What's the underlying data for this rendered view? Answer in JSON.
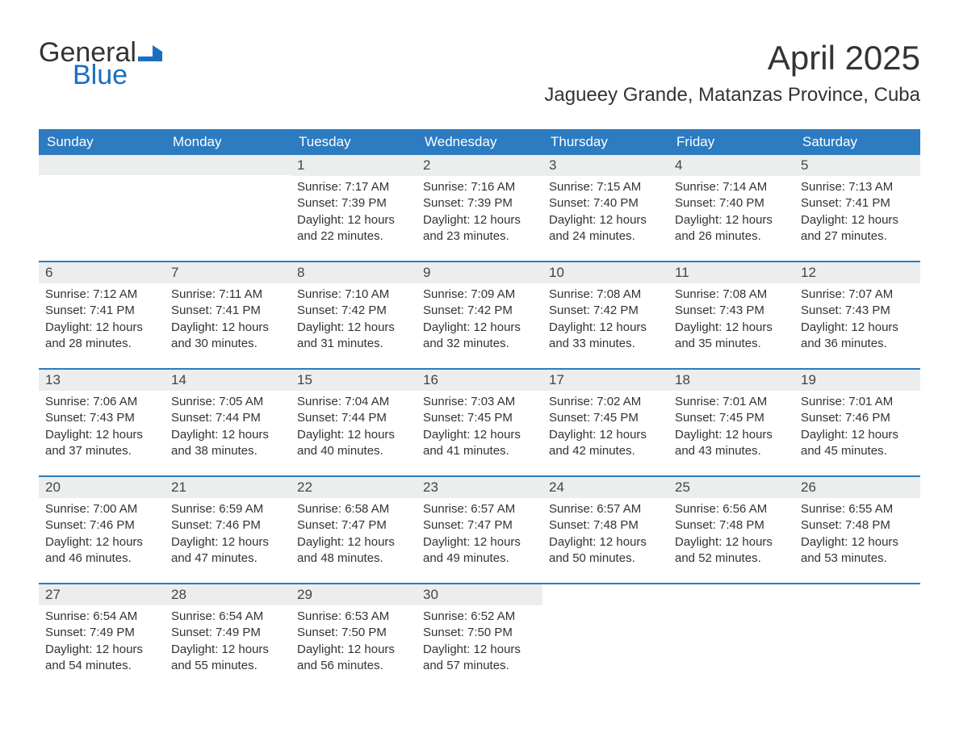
{
  "logo": {
    "general": "General",
    "blue": "Blue",
    "flag_color": "#1a6fbf"
  },
  "title": "April 2025",
  "location": "Jagueey Grande, Matanzas Province, Cuba",
  "colors": {
    "header_bg": "#2d7bc0",
    "header_text": "#ffffff",
    "daynum_bg": "#eceeee",
    "week_border": "#2d7bc0",
    "text": "#333333"
  },
  "weekdays": [
    "Sunday",
    "Monday",
    "Tuesday",
    "Wednesday",
    "Thursday",
    "Friday",
    "Saturday"
  ],
  "weeks": [
    [
      {
        "num": "",
        "sunrise": "",
        "sunset": "",
        "daylight": ""
      },
      {
        "num": "",
        "sunrise": "",
        "sunset": "",
        "daylight": ""
      },
      {
        "num": "1",
        "sunrise": "Sunrise: 7:17 AM",
        "sunset": "Sunset: 7:39 PM",
        "daylight": "Daylight: 12 hours and 22 minutes."
      },
      {
        "num": "2",
        "sunrise": "Sunrise: 7:16 AM",
        "sunset": "Sunset: 7:39 PM",
        "daylight": "Daylight: 12 hours and 23 minutes."
      },
      {
        "num": "3",
        "sunrise": "Sunrise: 7:15 AM",
        "sunset": "Sunset: 7:40 PM",
        "daylight": "Daylight: 12 hours and 24 minutes."
      },
      {
        "num": "4",
        "sunrise": "Sunrise: 7:14 AM",
        "sunset": "Sunset: 7:40 PM",
        "daylight": "Daylight: 12 hours and 26 minutes."
      },
      {
        "num": "5",
        "sunrise": "Sunrise: 7:13 AM",
        "sunset": "Sunset: 7:41 PM",
        "daylight": "Daylight: 12 hours and 27 minutes."
      }
    ],
    [
      {
        "num": "6",
        "sunrise": "Sunrise: 7:12 AM",
        "sunset": "Sunset: 7:41 PM",
        "daylight": "Daylight: 12 hours and 28 minutes."
      },
      {
        "num": "7",
        "sunrise": "Sunrise: 7:11 AM",
        "sunset": "Sunset: 7:41 PM",
        "daylight": "Daylight: 12 hours and 30 minutes."
      },
      {
        "num": "8",
        "sunrise": "Sunrise: 7:10 AM",
        "sunset": "Sunset: 7:42 PM",
        "daylight": "Daylight: 12 hours and 31 minutes."
      },
      {
        "num": "9",
        "sunrise": "Sunrise: 7:09 AM",
        "sunset": "Sunset: 7:42 PM",
        "daylight": "Daylight: 12 hours and 32 minutes."
      },
      {
        "num": "10",
        "sunrise": "Sunrise: 7:08 AM",
        "sunset": "Sunset: 7:42 PM",
        "daylight": "Daylight: 12 hours and 33 minutes."
      },
      {
        "num": "11",
        "sunrise": "Sunrise: 7:08 AM",
        "sunset": "Sunset: 7:43 PM",
        "daylight": "Daylight: 12 hours and 35 minutes."
      },
      {
        "num": "12",
        "sunrise": "Sunrise: 7:07 AM",
        "sunset": "Sunset: 7:43 PM",
        "daylight": "Daylight: 12 hours and 36 minutes."
      }
    ],
    [
      {
        "num": "13",
        "sunrise": "Sunrise: 7:06 AM",
        "sunset": "Sunset: 7:43 PM",
        "daylight": "Daylight: 12 hours and 37 minutes."
      },
      {
        "num": "14",
        "sunrise": "Sunrise: 7:05 AM",
        "sunset": "Sunset: 7:44 PM",
        "daylight": "Daylight: 12 hours and 38 minutes."
      },
      {
        "num": "15",
        "sunrise": "Sunrise: 7:04 AM",
        "sunset": "Sunset: 7:44 PM",
        "daylight": "Daylight: 12 hours and 40 minutes."
      },
      {
        "num": "16",
        "sunrise": "Sunrise: 7:03 AM",
        "sunset": "Sunset: 7:45 PM",
        "daylight": "Daylight: 12 hours and 41 minutes."
      },
      {
        "num": "17",
        "sunrise": "Sunrise: 7:02 AM",
        "sunset": "Sunset: 7:45 PM",
        "daylight": "Daylight: 12 hours and 42 minutes."
      },
      {
        "num": "18",
        "sunrise": "Sunrise: 7:01 AM",
        "sunset": "Sunset: 7:45 PM",
        "daylight": "Daylight: 12 hours and 43 minutes."
      },
      {
        "num": "19",
        "sunrise": "Sunrise: 7:01 AM",
        "sunset": "Sunset: 7:46 PM",
        "daylight": "Daylight: 12 hours and 45 minutes."
      }
    ],
    [
      {
        "num": "20",
        "sunrise": "Sunrise: 7:00 AM",
        "sunset": "Sunset: 7:46 PM",
        "daylight": "Daylight: 12 hours and 46 minutes."
      },
      {
        "num": "21",
        "sunrise": "Sunrise: 6:59 AM",
        "sunset": "Sunset: 7:46 PM",
        "daylight": "Daylight: 12 hours and 47 minutes."
      },
      {
        "num": "22",
        "sunrise": "Sunrise: 6:58 AM",
        "sunset": "Sunset: 7:47 PM",
        "daylight": "Daylight: 12 hours and 48 minutes."
      },
      {
        "num": "23",
        "sunrise": "Sunrise: 6:57 AM",
        "sunset": "Sunset: 7:47 PM",
        "daylight": "Daylight: 12 hours and 49 minutes."
      },
      {
        "num": "24",
        "sunrise": "Sunrise: 6:57 AM",
        "sunset": "Sunset: 7:48 PM",
        "daylight": "Daylight: 12 hours and 50 minutes."
      },
      {
        "num": "25",
        "sunrise": "Sunrise: 6:56 AM",
        "sunset": "Sunset: 7:48 PM",
        "daylight": "Daylight: 12 hours and 52 minutes."
      },
      {
        "num": "26",
        "sunrise": "Sunrise: 6:55 AM",
        "sunset": "Sunset: 7:48 PM",
        "daylight": "Daylight: 12 hours and 53 minutes."
      }
    ],
    [
      {
        "num": "27",
        "sunrise": "Sunrise: 6:54 AM",
        "sunset": "Sunset: 7:49 PM",
        "daylight": "Daylight: 12 hours and 54 minutes."
      },
      {
        "num": "28",
        "sunrise": "Sunrise: 6:54 AM",
        "sunset": "Sunset: 7:49 PM",
        "daylight": "Daylight: 12 hours and 55 minutes."
      },
      {
        "num": "29",
        "sunrise": "Sunrise: 6:53 AM",
        "sunset": "Sunset: 7:50 PM",
        "daylight": "Daylight: 12 hours and 56 minutes."
      },
      {
        "num": "30",
        "sunrise": "Sunrise: 6:52 AM",
        "sunset": "Sunset: 7:50 PM",
        "daylight": "Daylight: 12 hours and 57 minutes."
      },
      {
        "num": "",
        "sunrise": "",
        "sunset": "",
        "daylight": ""
      },
      {
        "num": "",
        "sunrise": "",
        "sunset": "",
        "daylight": ""
      },
      {
        "num": "",
        "sunrise": "",
        "sunset": "",
        "daylight": ""
      }
    ]
  ]
}
